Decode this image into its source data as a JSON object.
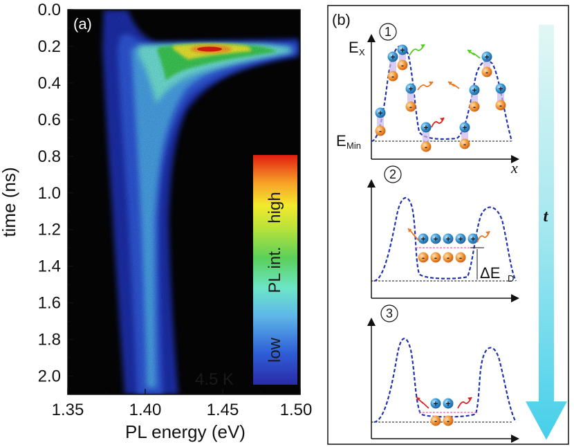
{
  "chart_data": [
    {
      "panel": "(a)",
      "type": "heatmap",
      "xlabel": "PL energy (eV)",
      "ylabel": "time (ns)",
      "xlim": [
        1.35,
        1.5
      ],
      "ylim": [
        2.1,
        0.0
      ],
      "x_ticks": [
        "1.35",
        "1.40",
        "1.45",
        "1.50"
      ],
      "y_ticks": [
        "0.0",
        "0.2",
        "0.4",
        "0.6",
        "0.8",
        "1.0",
        "1.2",
        "1.4",
        "1.6",
        "1.8",
        "2.0"
      ],
      "annotation": "4.5 K",
      "colorbar": {
        "title": "PL int.",
        "low_label": "low",
        "high_label": "high"
      },
      "feature": {
        "peak_energy_eV": 1.44,
        "peak_time_ns": 0.22,
        "tail_energy_eV": 1.395
      }
    },
    {
      "panel": "(b)",
      "type": "diagram",
      "steps": [
        "1",
        "2",
        "3"
      ],
      "y_axis_label": "E",
      "y_axis_sub": "X",
      "min_label": "E",
      "min_sub": "Min",
      "x_axis_label": "x",
      "delta_label": "ΔE",
      "delta_sub": "D",
      "time_arrow_label": "t",
      "plus_symbol": "+",
      "minus_symbol": "-"
    }
  ],
  "colors": {
    "heat_background": "#050505",
    "low": "#2a3ec8",
    "high": "#dd2200",
    "dash_profile": "#2233aa",
    "hole": "#2e8fc9",
    "electron": "#f08a2c",
    "time_arrow": "#5fd5ec"
  }
}
